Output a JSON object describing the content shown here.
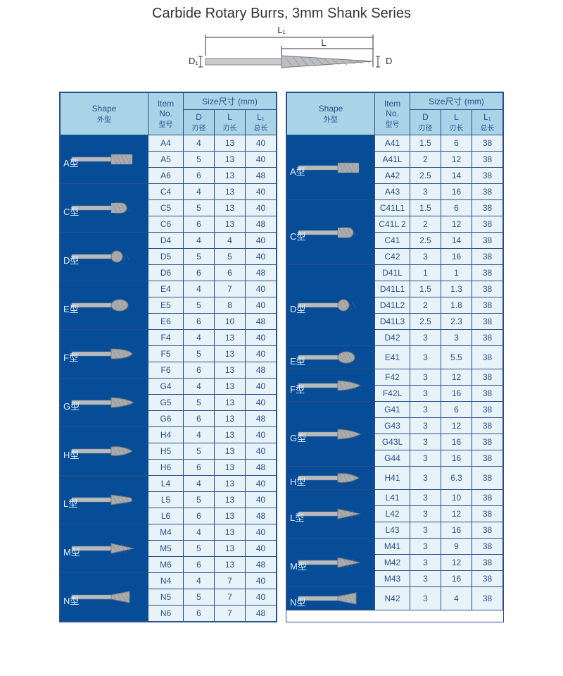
{
  "title": "Carbide Rotary Burrs, 3mm Shank Series",
  "diagram_labels": {
    "L1": "L₁",
    "L": "L",
    "D1": "D₁",
    "D": "D"
  },
  "headers": {
    "shape": "Shape",
    "shape_sub": "外型",
    "item": "Item No.",
    "item_sub": "型号",
    "size": "Size尺寸 (mm)",
    "d": "D",
    "d_sub": "刃径",
    "l": "L",
    "l_sub": "刃长",
    "l1": "L₁",
    "l1_sub": "总长"
  },
  "left_shapes": [
    {
      "label": "A型",
      "tip": "cyl",
      "rows": [
        [
          "A4",
          "4",
          "13",
          "40"
        ],
        [
          "A5",
          "5",
          "13",
          "40"
        ],
        [
          "A6",
          "6",
          "13",
          "48"
        ]
      ]
    },
    {
      "label": "C型",
      "tip": "round",
      "rows": [
        [
          "C4",
          "4",
          "13",
          "40"
        ],
        [
          "C5",
          "5",
          "13",
          "40"
        ],
        [
          "C6",
          "6",
          "13",
          "48"
        ]
      ]
    },
    {
      "label": "D型",
      "tip": "ball",
      "rows": [
        [
          "D4",
          "4",
          "4",
          "40"
        ],
        [
          "D5",
          "5",
          "5",
          "40"
        ],
        [
          "D6",
          "6",
          "6",
          "48"
        ]
      ]
    },
    {
      "label": "E型",
      "tip": "oval",
      "rows": [
        [
          "E4",
          "4",
          "7",
          "40"
        ],
        [
          "E5",
          "5",
          "8",
          "40"
        ],
        [
          "E6",
          "6",
          "10",
          "48"
        ]
      ]
    },
    {
      "label": "F型",
      "tip": "tree-r",
      "rows": [
        [
          "F4",
          "4",
          "13",
          "40"
        ],
        [
          "F5",
          "5",
          "13",
          "40"
        ],
        [
          "F6",
          "6",
          "13",
          "48"
        ]
      ]
    },
    {
      "label": "G型",
      "tip": "tree-p",
      "rows": [
        [
          "G4",
          "4",
          "13",
          "40"
        ],
        [
          "G5",
          "5",
          "13",
          "40"
        ],
        [
          "G6",
          "6",
          "13",
          "48"
        ]
      ]
    },
    {
      "label": "H型",
      "tip": "flame",
      "rows": [
        [
          "H4",
          "4",
          "13",
          "40"
        ],
        [
          "H5",
          "5",
          "13",
          "40"
        ],
        [
          "H6",
          "6",
          "13",
          "48"
        ]
      ]
    },
    {
      "label": "L型",
      "tip": "cone-r",
      "rows": [
        [
          "L4",
          "4",
          "13",
          "40"
        ],
        [
          "L5",
          "5",
          "13",
          "40"
        ],
        [
          "L6",
          "6",
          "13",
          "48"
        ]
      ]
    },
    {
      "label": "M型",
      "tip": "cone",
      "rows": [
        [
          "M4",
          "4",
          "13",
          "40"
        ],
        [
          "M5",
          "5",
          "13",
          "40"
        ],
        [
          "M6",
          "6",
          "13",
          "48"
        ]
      ]
    },
    {
      "label": "N型",
      "tip": "inv",
      "rows": [
        [
          "N4",
          "4",
          "7",
          "40"
        ],
        [
          "N5",
          "5",
          "7",
          "40"
        ],
        [
          "N6",
          "6",
          "7",
          "48"
        ]
      ]
    }
  ],
  "right_shapes": [
    {
      "label": "A型",
      "tip": "cyl",
      "rows": [
        [
          "A41",
          "1.5",
          "6",
          "38"
        ],
        [
          "A41L",
          "2",
          "12",
          "38"
        ],
        [
          "A42",
          "2.5",
          "14",
          "38"
        ],
        [
          "A43",
          "3",
          "16",
          "38"
        ]
      ]
    },
    {
      "label": "C型",
      "tip": "round",
      "rows": [
        [
          "C41L1",
          "1.5",
          "6",
          "38"
        ],
        [
          "C41L 2",
          "2",
          "12",
          "38"
        ],
        [
          "C41",
          "2.5",
          "14",
          "38"
        ],
        [
          "C42",
          "3",
          "16",
          "38"
        ]
      ]
    },
    {
      "label": "D型",
      "tip": "ball",
      "rows": [
        [
          "D41L",
          "1",
          "1",
          "38"
        ],
        [
          "D41L1",
          "1.5",
          "1.3",
          "38"
        ],
        [
          "D41L2",
          "2",
          "1.8",
          "38"
        ],
        [
          "D41L3",
          "2.5",
          "2.3",
          "38"
        ],
        [
          "D42",
          "3",
          "3",
          "38"
        ]
      ]
    },
    {
      "label": "E型",
      "tip": "oval",
      "rows": [
        [
          "E41",
          "3",
          "5.5",
          "38"
        ]
      ]
    },
    {
      "label": "F型",
      "tip": "tree-p",
      "rows": [
        [
          "F42",
          "3",
          "12",
          "38"
        ],
        [
          "F42L",
          "3",
          "16",
          "38"
        ]
      ]
    },
    {
      "label": "G型",
      "tip": "tree-p",
      "rows": [
        [
          "G41",
          "3",
          "6",
          "38"
        ],
        [
          "G43",
          "3",
          "12",
          "38"
        ],
        [
          "G43L",
          "3",
          "16",
          "38"
        ],
        [
          "G44",
          "3",
          "16",
          "38"
        ]
      ]
    },
    {
      "label": "H型",
      "tip": "flame",
      "rows": [
        [
          "H41",
          "3",
          "6.3",
          "38"
        ]
      ]
    },
    {
      "label": "L型",
      "tip": "cone",
      "rows": [
        [
          "L41",
          "3",
          "10",
          "38"
        ],
        [
          "L42",
          "3",
          "12",
          "38"
        ],
        [
          "L43",
          "3",
          "16",
          "38"
        ]
      ]
    },
    {
      "label": "M型",
      "tip": "cone",
      "rows": [
        [
          "M41",
          "3",
          "9",
          "38"
        ],
        [
          "M42",
          "3",
          "12",
          "38"
        ],
        [
          "M43",
          "3",
          "16",
          "38"
        ]
      ]
    },
    {
      "label": "N型",
      "tip": "inv",
      "rows": [
        [
          "N42",
          "3",
          "4",
          "38"
        ]
      ]
    }
  ],
  "colors": {
    "header_bg": "#a9d4e8",
    "shape_bg": "#074c96",
    "cell_bg": "#e8f3f9",
    "border": "#2a4f8a"
  }
}
